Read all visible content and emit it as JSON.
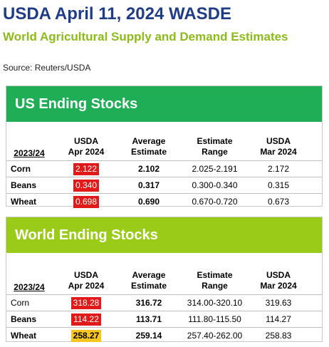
{
  "header": {
    "title": "USDA April 11, 2024 WASDE",
    "subtitle": "World Agricultural Supply and Demand Estimates",
    "source": "Source: Reuters/USDA"
  },
  "us": {
    "band_title": "US Ending Stocks",
    "year": "2023/24",
    "columns": [
      {
        "line1": "USDA",
        "line2": "Apr 2024"
      },
      {
        "line1": "Average",
        "line2": "Estimate"
      },
      {
        "line1": "Estimate",
        "line2": "Range"
      },
      {
        "line1": "USDA",
        "line2": "Mar 2024"
      }
    ],
    "rows": [
      {
        "label": "Corn",
        "apr": "2.122",
        "avg": "2.102",
        "range": "2.025-2.191",
        "mar": "2.172",
        "apr_color": "#e11919"
      },
      {
        "label": "Beans",
        "apr": "0.340",
        "avg": "0.317",
        "range": "0.300-0.340",
        "mar": "0.315",
        "apr_color": "#e11919"
      },
      {
        "label": "Wheat",
        "apr": "0.698",
        "avg": "0.690",
        "range": "0.670-0.720",
        "mar": "0.673",
        "apr_color": "#e11919"
      }
    ]
  },
  "world": {
    "band_title": "World Ending Stocks",
    "year": "2023/24",
    "columns": [
      {
        "line1": "USDA",
        "line2": "Apr 2024"
      },
      {
        "line1": "Average",
        "line2": "Estimate"
      },
      {
        "line1": "Estimate",
        "line2": "Range"
      },
      {
        "line1": "USDA",
        "line2": "Mar 2024"
      }
    ],
    "rows": [
      {
        "label": "Corn",
        "apr": "318.28",
        "avg": "316.72",
        "range": "314.00-320.10",
        "mar": "319.63",
        "apr_color": "#e11919"
      },
      {
        "label": "Beans",
        "apr": "114.22",
        "avg": "113.71",
        "range": "111.80-115.50",
        "mar": "114.27",
        "apr_color": "#e11919"
      },
      {
        "label": "Wheat",
        "apr": "258.27",
        "avg": "259.14",
        "range": "257.40-262.00",
        "mar": "258.83",
        "apr_color": "#f7c51d"
      }
    ]
  },
  "colors": {
    "title": "#1f3c88",
    "subtitle": "#8dbb1a",
    "us_band": "#1fad55",
    "world_band": "#9bcb19",
    "highlight_red": "#e11919",
    "highlight_yellow": "#f7c51d"
  }
}
